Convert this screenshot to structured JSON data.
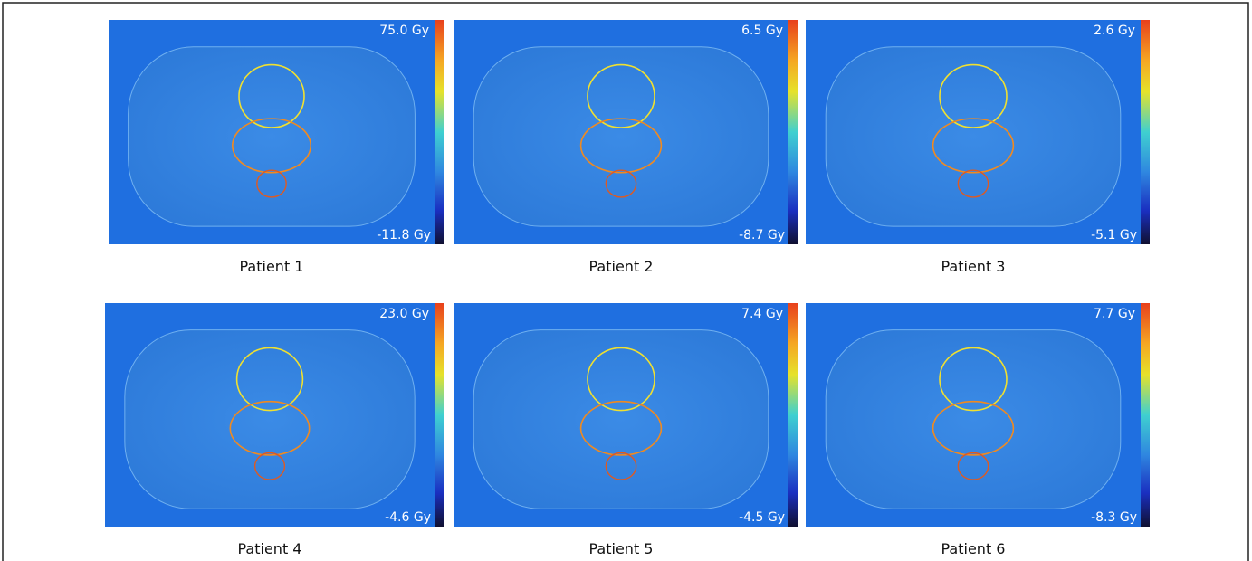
{
  "panels": [
    {
      "label": "Patient 1",
      "max": "75.0 Gy",
      "min": "-11.8 Gy"
    },
    {
      "label": "Patient 2",
      "max": "6.5 Gy",
      "min": "-8.7 Gy"
    },
    {
      "label": "Patient 3",
      "max": "2.6 Gy",
      "min": "-5.1 Gy"
    },
    {
      "label": "Patient 4",
      "max": "23.0 Gy",
      "min": "-4.6 Gy"
    },
    {
      "label": "Patient 5",
      "max": "7.4 Gy",
      "min": "-4.5 Gy"
    },
    {
      "label": "Patient 6",
      "max": "7.7 Gy",
      "min": "-8.3 Gy"
    }
  ]
}
